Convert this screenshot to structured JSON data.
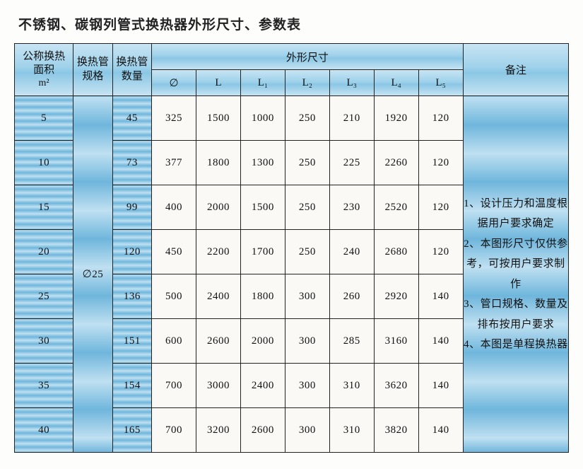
{
  "title": "不锈钢、碳钢列管式换热器外形尺寸、参数表",
  "headers": {
    "area_line1": "公称换热",
    "area_line2": "面积",
    "area_unit": "m²",
    "tube_spec": "换热管规格",
    "tube_qty": "换热管数量",
    "dimensions": "外形尺寸",
    "notes": "备注",
    "dim_cols": [
      "∅",
      "L",
      "L₁",
      "L₂",
      "L₃",
      "L₄",
      "L₅"
    ]
  },
  "tube_spec_value": "∅25",
  "rows": [
    {
      "area": "5",
      "qty": "45",
      "dims": [
        "325",
        "1500",
        "1000",
        "250",
        "210",
        "1920",
        "120"
      ]
    },
    {
      "area": "10",
      "qty": "73",
      "dims": [
        "377",
        "1800",
        "1300",
        "250",
        "225",
        "2260",
        "120"
      ]
    },
    {
      "area": "15",
      "qty": "99",
      "dims": [
        "400",
        "2000",
        "1500",
        "250",
        "230",
        "2520",
        "120"
      ]
    },
    {
      "area": "20",
      "qty": "120",
      "dims": [
        "450",
        "2200",
        "1700",
        "250",
        "240",
        "2680",
        "120"
      ]
    },
    {
      "area": "25",
      "qty": "136",
      "dims": [
        "500",
        "2400",
        "1800",
        "300",
        "260",
        "2920",
        "140"
      ]
    },
    {
      "area": "30",
      "qty": "151",
      "dims": [
        "600",
        "2600",
        "2000",
        "300",
        "285",
        "3160",
        "140"
      ]
    },
    {
      "area": "35",
      "qty": "154",
      "dims": [
        "700",
        "3000",
        "2400",
        "300",
        "310",
        "3620",
        "140"
      ]
    },
    {
      "area": "40",
      "qty": "165",
      "dims": [
        "700",
        "3200",
        "2600",
        "300",
        "310",
        "3820",
        "140"
      ]
    }
  ],
  "notes_lines": [
    "1、设计压力和温度根据用户要求确定",
    "2、本图形尺寸仅供参考，可按用户要求制作",
    "3、管口规格、数量及排布按用户要求",
    "4、本图是单程换热器"
  ]
}
